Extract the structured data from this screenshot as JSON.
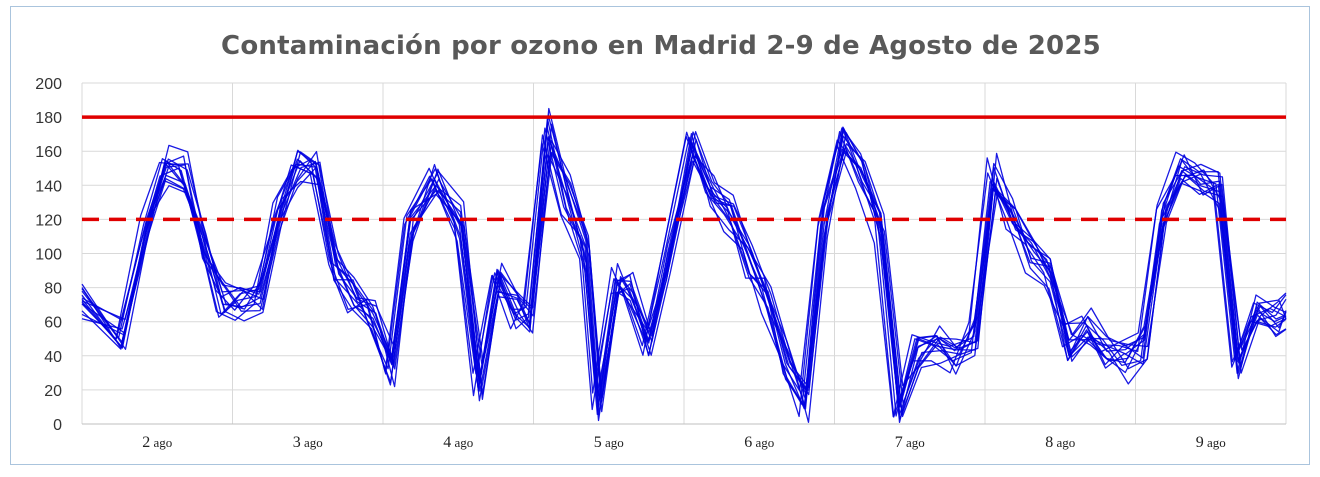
{
  "chart_data": {
    "type": "line",
    "title": "Contaminación por ozono en Madrid 2-9 de Agosto de 2025",
    "xlabel": "",
    "ylabel": "",
    "ylim": [
      0,
      200
    ],
    "yticks": [
      0,
      20,
      40,
      60,
      80,
      100,
      120,
      140,
      160,
      180,
      200
    ],
    "x_range_hours": [
      0,
      192
    ],
    "days": [
      {
        "num": "2",
        "suffix": "ago"
      },
      {
        "num": "3",
        "suffix": "ago"
      },
      {
        "num": "4",
        "suffix": "ago"
      },
      {
        "num": "5",
        "suffix": "ago"
      },
      {
        "num": "6",
        "suffix": "ago"
      },
      {
        "num": "7",
        "suffix": "ago"
      },
      {
        "num": "8",
        "suffix": "ago"
      },
      {
        "num": "9",
        "suffix": "ago"
      }
    ],
    "reference_lines": [
      {
        "value": 180,
        "style": "solid",
        "color": "#e00000"
      },
      {
        "value": 120,
        "style": "dashed",
        "color": "#e00000"
      }
    ],
    "series_color": "#0000e0",
    "series_count": 14,
    "series_base": {
      "x_hours": [
        0,
        6,
        10,
        13,
        16,
        19,
        22,
        25,
        28,
        31,
        34,
        37,
        40,
        43,
        46,
        49,
        52,
        56,
        60,
        63,
        66,
        69,
        71,
        74,
        77,
        80,
        82,
        85,
        87,
        90,
        93,
        97,
        100,
        103,
        106,
        109,
        112,
        115,
        118,
        121,
        124,
        127,
        130,
        133,
        136,
        139,
        142,
        145,
        148,
        151,
        154,
        157,
        160,
        163,
        166,
        169,
        172,
        175,
        178,
        181,
        184,
        187,
        190,
        192
      ],
      "values": [
        70,
        48,
        118,
        152,
        150,
        105,
        72,
        70,
        75,
        125,
        152,
        155,
        95,
        75,
        62,
        28,
        115,
        145,
        120,
        22,
        85,
        65,
        60,
        175,
        135,
        100,
        8,
        85,
        80,
        45,
        95,
        165,
        140,
        125,
        95,
        75,
        35,
        12,
        120,
        170,
        150,
        115,
        5,
        40,
        45,
        35,
        50,
        150,
        125,
        100,
        90,
        45,
        55,
        38,
        35,
        45,
        125,
        155,
        145,
        140,
        30,
        70,
        60,
        65
      ]
    }
  }
}
